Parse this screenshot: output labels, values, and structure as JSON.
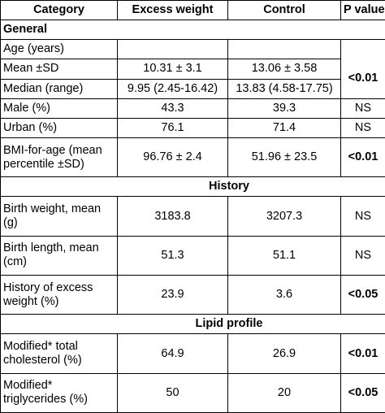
{
  "header": {
    "category": "Category",
    "excess": "Excess weight",
    "control": "Control",
    "pvalue": "P value"
  },
  "sections": {
    "general": "General",
    "history": "History",
    "lipid": "Lipid profile"
  },
  "rows": {
    "age": {
      "label": "Age (years)"
    },
    "mean": {
      "label": "Mean ±SD",
      "excess": "10.31 ± 3.1",
      "control": "13.06 ± 3.58"
    },
    "median": {
      "label": "Median (range)",
      "excess": "9.95 (2.45-16.42)",
      "control": "13.83 (4.58-17.75)"
    },
    "age_p": "<0.01",
    "male": {
      "label": "Male (%)",
      "excess": "43.3",
      "control": "39.3",
      "p": "NS"
    },
    "urban": {
      "label": "Urban (%)",
      "excess": "76.1",
      "control": "71.4",
      "p": "NS"
    },
    "bmi": {
      "label_1": "BMI-for-age (mean",
      "label_2": "percentile ±SD)",
      "excess": "96.76 ± 2.4",
      "control": "51.96 ± 23.5",
      "p": "<0.01"
    },
    "birth_weight": {
      "label_1": "Birth weight, mean",
      "label_2": "(g)",
      "excess": "3183.8",
      "control": "3207.3",
      "p": "NS"
    },
    "birth_length": {
      "label_1": "Birth length, mean",
      "label_2": "(cm)",
      "excess": "51.3",
      "control": "51.1",
      "p": "NS"
    },
    "history_excess": {
      "label_1": "History of excess",
      "label_2": "weight (%)",
      "excess": "23.9",
      "control": "3.6",
      "p": "<0.05"
    },
    "cholesterol": {
      "label_1": "Modified* total",
      "label_2": "cholesterol (%)",
      "excess": "64.9",
      "control": "26.9",
      "p": "<0.01"
    },
    "triglycerides": {
      "label_1": "Modified*",
      "label_2": "triglycerides (%)",
      "excess": "50",
      "control": "20",
      "p": "<0.05"
    }
  }
}
